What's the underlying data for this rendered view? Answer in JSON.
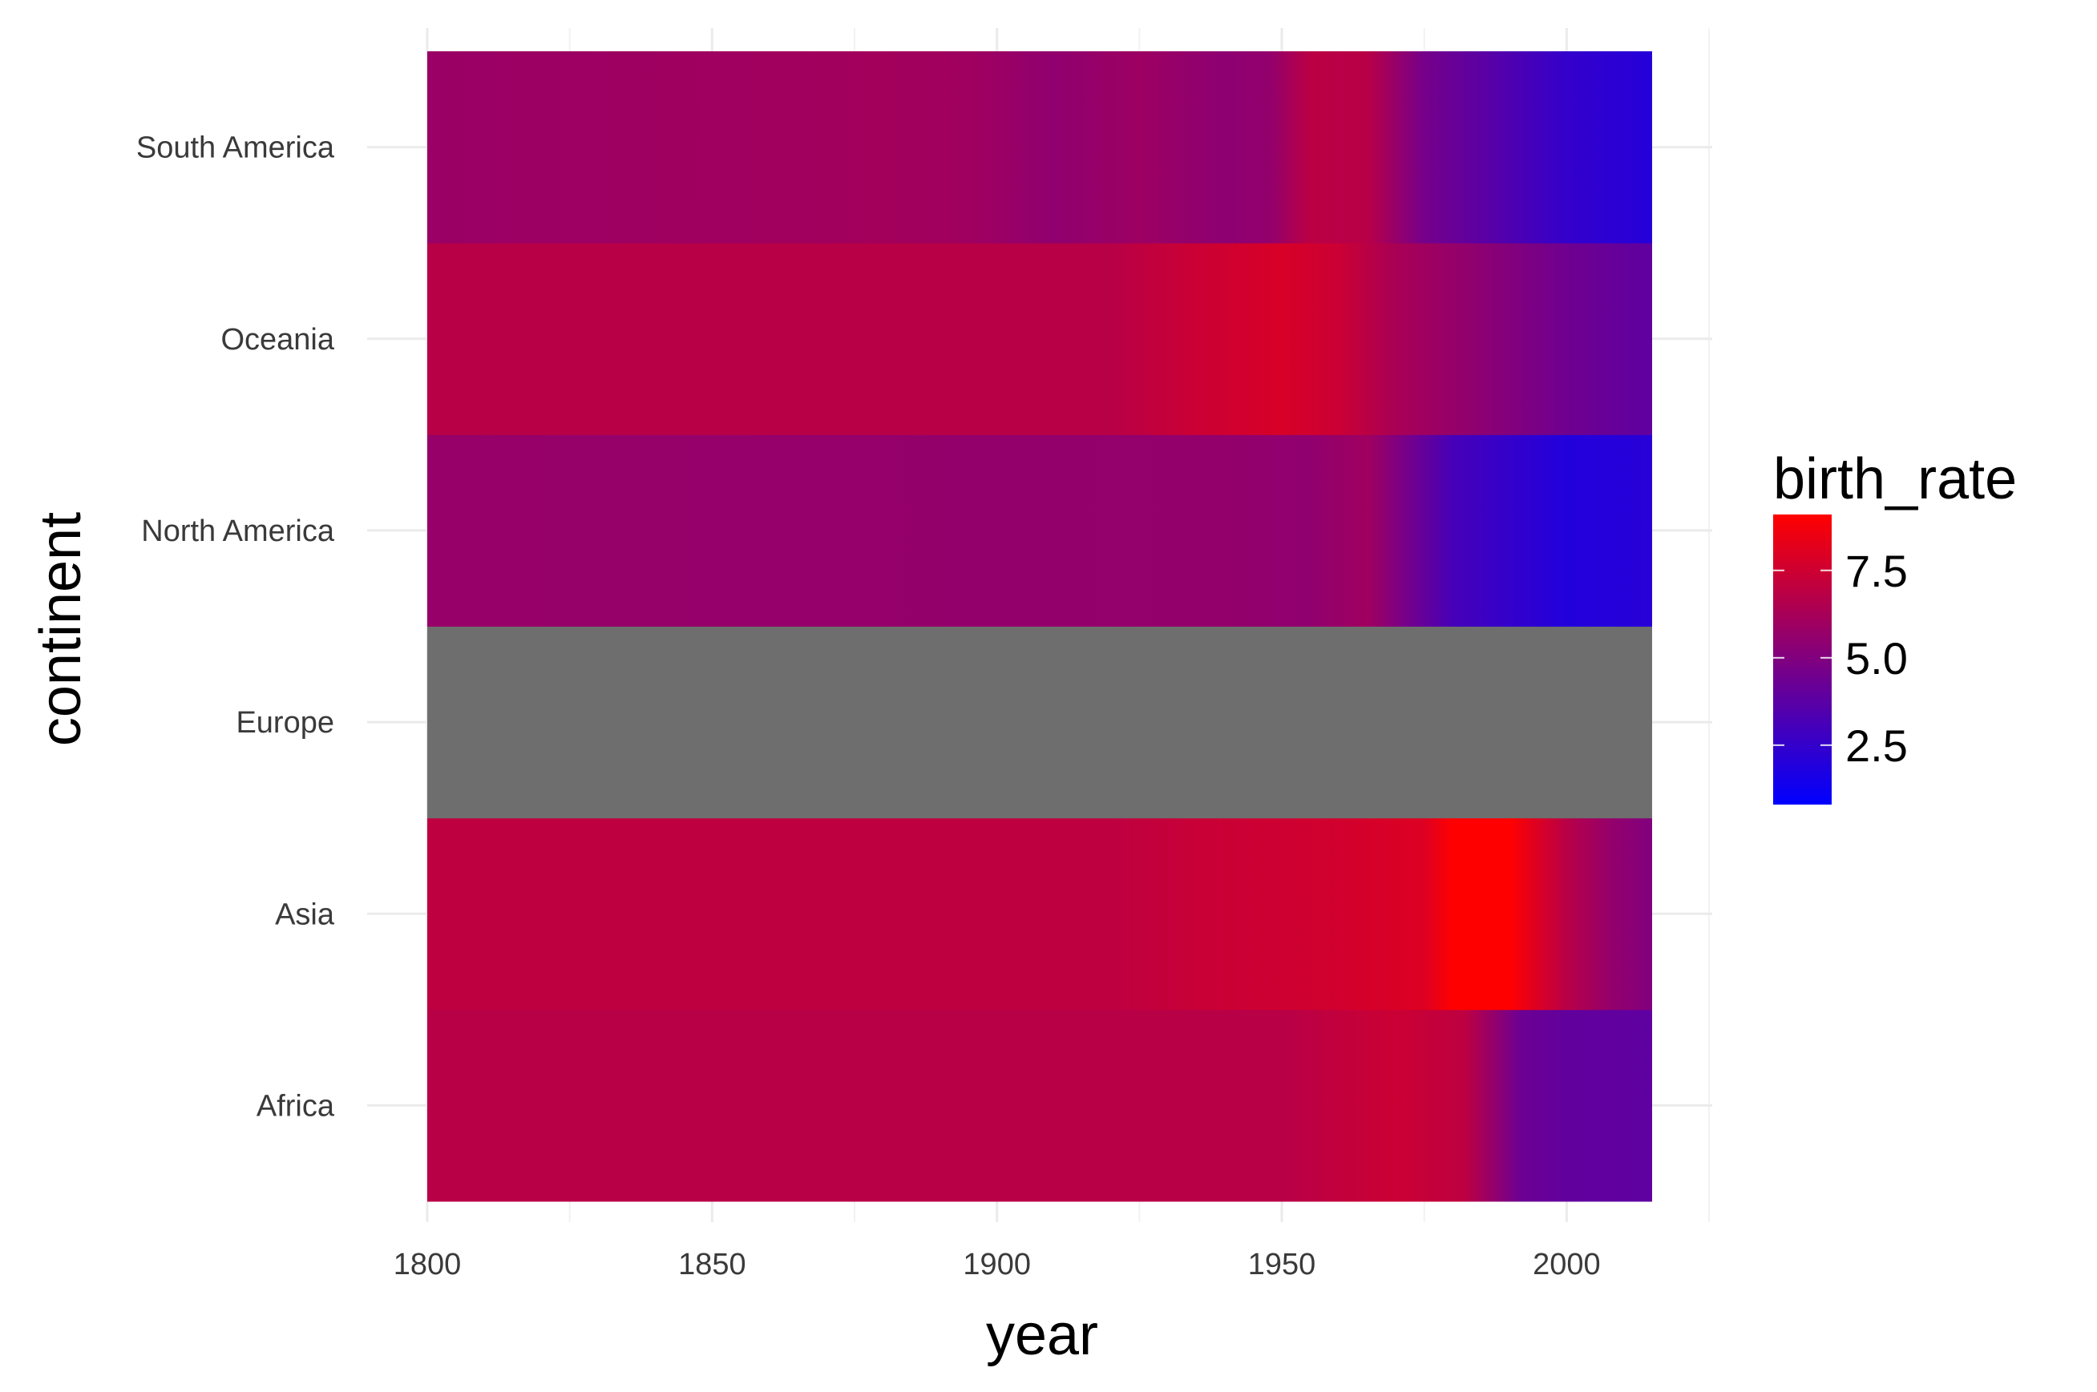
{
  "chart_data": {
    "type": "heatmap",
    "title": "",
    "xlabel": "year",
    "ylabel": "continent",
    "x_ticks": [
      "1800",
      "1850",
      "1900",
      "1950",
      "2000"
    ],
    "x_tick_values": [
      1800,
      1850,
      1900,
      1950,
      2000
    ],
    "xlim": [
      1800,
      2015
    ],
    "categories": [
      "Africa",
      "Asia",
      "Europe",
      "North America",
      "Oceania",
      "South America"
    ],
    "grid": true,
    "color_scale": {
      "name": "birth_rate",
      "low_color": "#0000ff",
      "high_color": "#ff0000",
      "limits": [
        0.8,
        9.1
      ],
      "breaks": [
        2.5,
        5.0,
        7.5
      ],
      "break_labels": [
        "2.5",
        "5.0",
        "7.5"
      ],
      "na_color": "#6e6e6e",
      "legend_position": "right"
    },
    "series": [
      {
        "name": "South America",
        "points": [
          [
            1800,
            5.8
          ],
          [
            1880,
            6.1
          ],
          [
            1895,
            6.0
          ],
          [
            1910,
            5.5
          ],
          [
            1925,
            5.9
          ],
          [
            1940,
            5.4
          ],
          [
            1948,
            5.6
          ],
          [
            1955,
            6.9
          ],
          [
            1965,
            6.8
          ],
          [
            1975,
            4.6
          ],
          [
            1985,
            3.8
          ],
          [
            2000,
            2.5
          ],
          [
            2015,
            2.0
          ]
        ]
      },
      {
        "name": "Oceania",
        "points": [
          [
            1800,
            6.8
          ],
          [
            1920,
            6.8
          ],
          [
            1935,
            7.4
          ],
          [
            1950,
            7.8
          ],
          [
            1960,
            7.4
          ],
          [
            1970,
            6.3
          ],
          [
            1985,
            5.4
          ],
          [
            2000,
            4.4
          ],
          [
            2015,
            3.9
          ]
        ]
      },
      {
        "name": "North America",
        "points": [
          [
            1800,
            5.7
          ],
          [
            1940,
            5.6
          ],
          [
            1955,
            5.5
          ],
          [
            1965,
            6.0
          ],
          [
            1972,
            4.6
          ],
          [
            1980,
            3.1
          ],
          [
            1990,
            2.5
          ],
          [
            2000,
            1.9
          ],
          [
            2015,
            2.1
          ]
        ]
      },
      {
        "name": "Europe",
        "points": []
      },
      {
        "name": "Asia",
        "points": [
          [
            1800,
            7.0
          ],
          [
            1920,
            7.0
          ],
          [
            1935,
            7.3
          ],
          [
            1960,
            7.6
          ],
          [
            1975,
            8.0
          ],
          [
            1980,
            9.1
          ],
          [
            1990,
            9.1
          ],
          [
            2000,
            6.8
          ],
          [
            2008,
            5.6
          ],
          [
            2015,
            5.0
          ]
        ]
      },
      {
        "name": "Africa",
        "points": [
          [
            1800,
            6.8
          ],
          [
            1950,
            6.8
          ],
          [
            1960,
            7.1
          ],
          [
            1970,
            7.4
          ],
          [
            1982,
            7.0
          ],
          [
            1992,
            4.3
          ],
          [
            2000,
            4.0
          ],
          [
            2015,
            3.9
          ]
        ]
      }
    ]
  }
}
